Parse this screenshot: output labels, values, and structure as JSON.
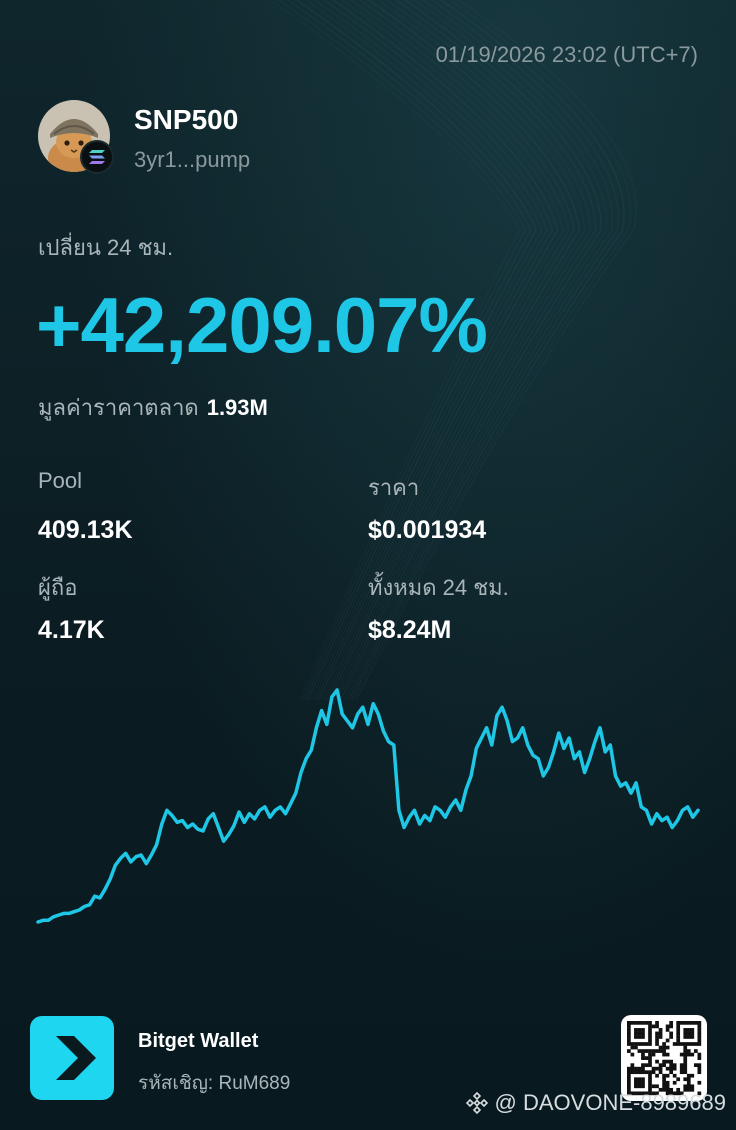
{
  "timestamp": "01/19/2026 23:02 (UTC+7)",
  "token": {
    "name": "SNP500",
    "address": "3yr1...pump",
    "chain_icon": "solana-icon"
  },
  "change": {
    "label": "เปลี่ยน 24 ชม.",
    "value": "+42,209.07%",
    "color": "#1fc7e6"
  },
  "market_cap": {
    "label": "มูลค่าราคาตลาด",
    "value": "1.93M"
  },
  "stats": {
    "pool_label": "Pool",
    "pool_value": "409.13K",
    "price_label": "ราคา",
    "price_value": "$0.001934",
    "holders_label": "ผู้ถือ",
    "holders_value": "4.17K",
    "volume_label": "ทั้งหมด 24 ชม.",
    "volume_value": "$8.24M"
  },
  "chart_data": {
    "type": "line",
    "color": "#1fc7e6",
    "values": [
      5,
      6,
      6,
      8,
      9,
      10,
      10,
      11,
      12,
      14,
      15,
      20,
      19,
      24,
      30,
      38,
      42,
      45,
      40,
      43,
      44,
      39,
      44,
      50,
      62,
      70,
      67,
      63,
      64,
      60,
      62,
      59,
      58,
      65,
      68,
      60,
      52,
      56,
      61,
      69,
      63,
      68,
      65,
      70,
      72,
      66,
      70,
      72,
      68,
      74,
      80,
      92,
      100,
      105,
      118,
      128,
      120,
      136,
      140,
      126,
      122,
      118,
      126,
      130,
      120,
      132,
      126,
      116,
      110,
      108,
      70,
      60,
      66,
      70,
      62,
      67,
      64,
      72,
      70,
      66,
      72,
      76,
      70,
      82,
      90,
      106,
      112,
      118,
      108,
      125,
      130,
      122,
      110,
      112,
      118,
      108,
      102,
      100,
      90,
      95,
      104,
      115,
      106,
      112,
      100,
      104,
      92,
      100,
      110,
      118,
      104,
      108,
      90,
      84,
      86,
      80,
      86,
      72,
      70,
      62,
      68,
      64,
      66,
      60,
      64,
      70,
      72,
      66,
      70
    ],
    "grid": false
  },
  "brand": {
    "name": "Bitget Wallet",
    "invite_label": "รหัสเชิญ:",
    "invite_code": "RuM689"
  },
  "watermark": {
    "text": "@ DAOVONE-8989689"
  }
}
